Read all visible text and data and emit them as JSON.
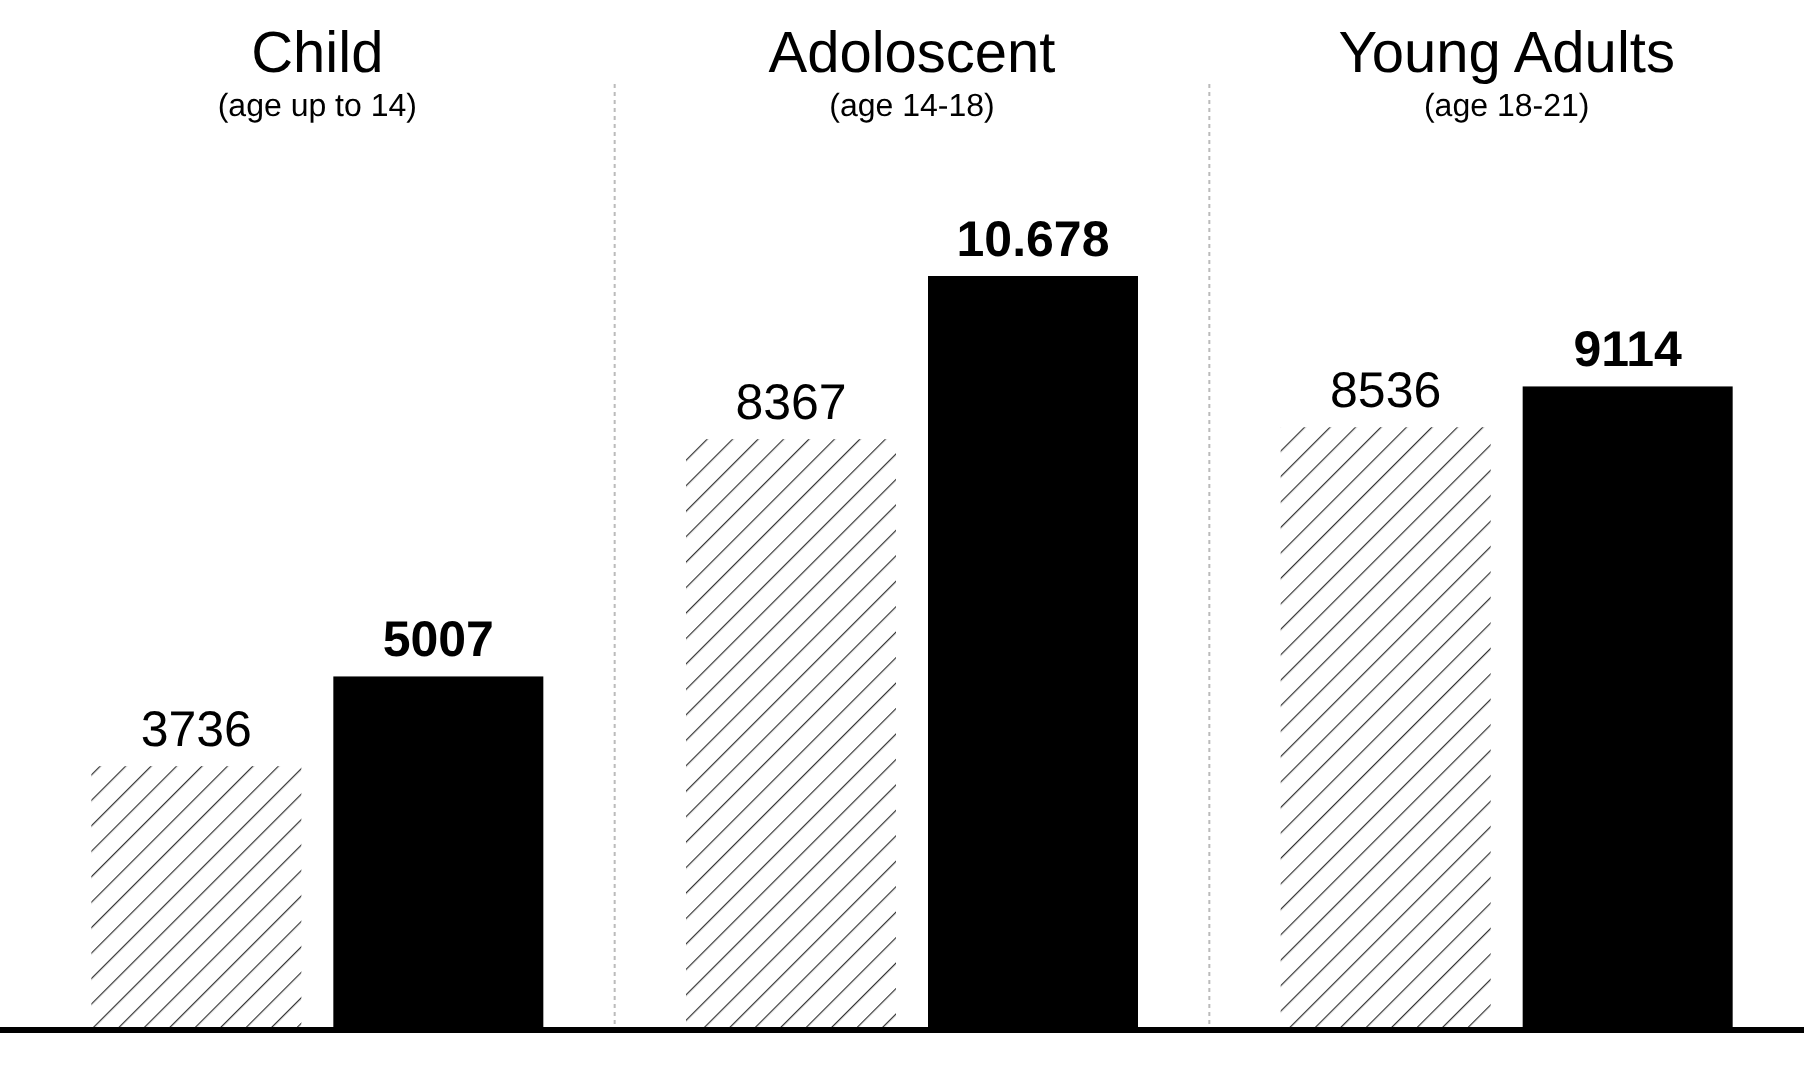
{
  "chart_data": {
    "type": "bar",
    "categories": [
      "Child\n(age up to 14)",
      "Adoloscent\n(age 14-18)",
      "Young Adults\n(age 18-21)"
    ],
    "series": [
      {
        "color": "#333333",
        "values": [
          3736,
          8367,
          8536
        ],
        "value_labels": [
          "3736",
          "8367",
          "8536"
        ]
      },
      {
        "color": "#000000",
        "values": [
          5007,
          10678,
          9114
        ],
        "value_labels": [
          "5007",
          "10.678",
          "9114"
        ]
      }
    ]
  }
}
